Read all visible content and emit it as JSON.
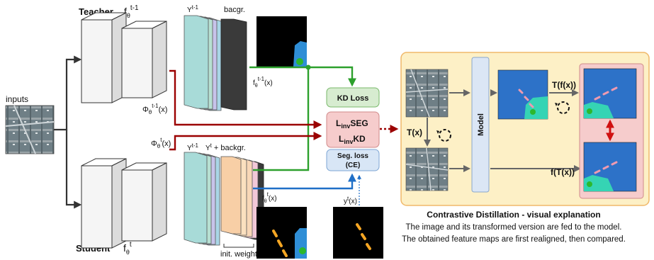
{
  "teacher": {
    "label": "Teacher",
    "symbol": "f",
    "sub": "θ",
    "sup": "t-1"
  },
  "student": {
    "label": "Student",
    "symbol": "f",
    "sub": "θ",
    "sup": "t"
  },
  "inputs_label": "inputs",
  "teacher_stack": {
    "y_label": "Y",
    "y_sup": "t-1",
    "bg_label": "bacgr."
  },
  "student_stack": {
    "y_label": "Y",
    "y_sup": "t-1",
    "y2_label": "Y",
    "y2_sup": "t",
    "bg_label": "+ backgr."
  },
  "init_weights": "init. weights",
  "phi_teacher": {
    "base": "Φ",
    "sub": "θ",
    "sup": "t-1",
    "arg": "(x)"
  },
  "phi_student": {
    "base": "Φ",
    "sub": "θ",
    "sup": "t",
    "arg": "(x)"
  },
  "f_teacher_out": {
    "base": "f",
    "sub": "θ",
    "sup": "t-1",
    "arg": "(x)"
  },
  "f_student_out": {
    "base": "f",
    "sub": "θ",
    "sup": "t",
    "arg": "(x)"
  },
  "y_gt": {
    "base": "y",
    "sup": "t",
    "arg": "(x)"
  },
  "losses": {
    "kd": "KD Loss",
    "inv_seg": {
      "L": "L",
      "sub": "inv",
      "name": "SEG"
    },
    "inv_kd": {
      "L": "L",
      "sub": "inv",
      "name": "KD"
    },
    "seg_line1": "Seg. loss",
    "seg_line2": "(CE)"
  },
  "panel": {
    "model": "Model",
    "tx": "T(x)",
    "tfx": "T(f(x))",
    "ftx": "f(T(x))",
    "caption_title": "Contrastive Distillation - visual explanation",
    "caption_1": "The image and its transformed version are fed to the model.",
    "caption_2": "The obtained feature maps are first realigned, then compared."
  },
  "colors": {
    "green": "#2ca02c",
    "red": "#9b0000",
    "blue": "#1f6fc7",
    "panel_bg": "#fdf0c6",
    "panel_border": "#f0b86a",
    "kd_box": "#d7ecd0",
    "inv_box": "#f6cccc",
    "seg_box": "#d8e6f6"
  }
}
